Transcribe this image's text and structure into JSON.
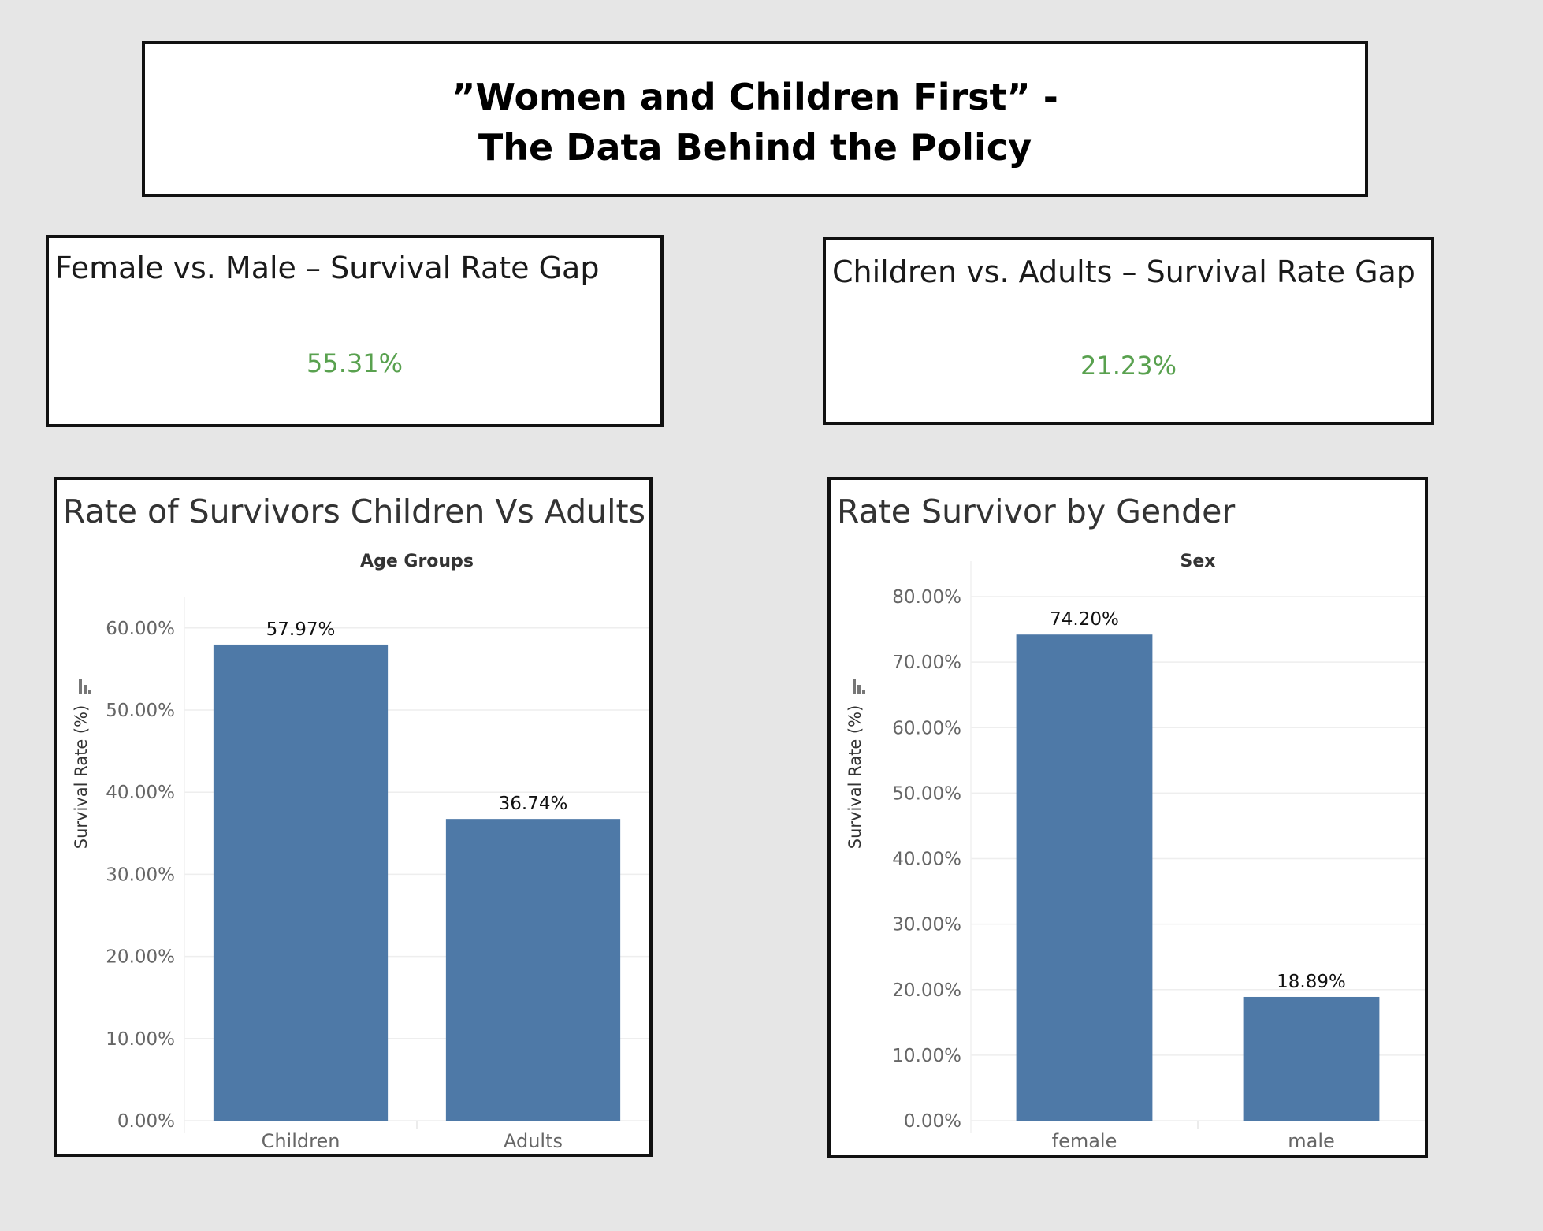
{
  "header": {
    "title_line_1": "”Women and Children First” -",
    "title_line_2": "The Data Behind the Policy"
  },
  "kpis": [
    {
      "title": "Female vs. Male – Survival Rate Gap",
      "value": "55.31%"
    },
    {
      "title": "Children vs. Adults – Survival Rate Gap",
      "value": "21.23%"
    }
  ],
  "colors": {
    "bar": "#4e79a7",
    "kpi_value": "#59a14f",
    "grid": "#eeeeee",
    "axis_text": "#666666"
  },
  "chart_data": [
    {
      "type": "bar",
      "title": "Rate of Survivors Children Vs Adults",
      "xlabel": "Age Groups",
      "ylabel": "Survival Rate (%)",
      "categories": [
        "Children",
        "Adults"
      ],
      "values": [
        57.97,
        36.74
      ],
      "value_labels": [
        "57.97%",
        "36.74%"
      ],
      "yticks": [
        "0.00%",
        "10.00%",
        "20.00%",
        "30.00%",
        "40.00%",
        "50.00%",
        "60.00%"
      ],
      "ytick_values": [
        0,
        10,
        20,
        30,
        40,
        50,
        60
      ],
      "ylim": [
        0,
        59.5
      ],
      "grid": true
    },
    {
      "type": "bar",
      "title": "Rate Survivor by Gender",
      "xlabel": "Sex",
      "ylabel": "Survival Rate (%)",
      "categories": [
        "female",
        "male"
      ],
      "values": [
        74.2,
        18.89
      ],
      "value_labels": [
        "74.20%",
        "18.89%"
      ],
      "yticks": [
        "0.00%",
        "10.00%",
        "20.00%",
        "30.00%",
        "40.00%",
        "50.00%",
        "60.00%",
        "70.00%",
        "80.00%"
      ],
      "ytick_values": [
        0,
        10,
        20,
        30,
        40,
        50,
        60,
        70,
        80
      ],
      "ylim": [
        0,
        80
      ],
      "grid": true
    }
  ]
}
